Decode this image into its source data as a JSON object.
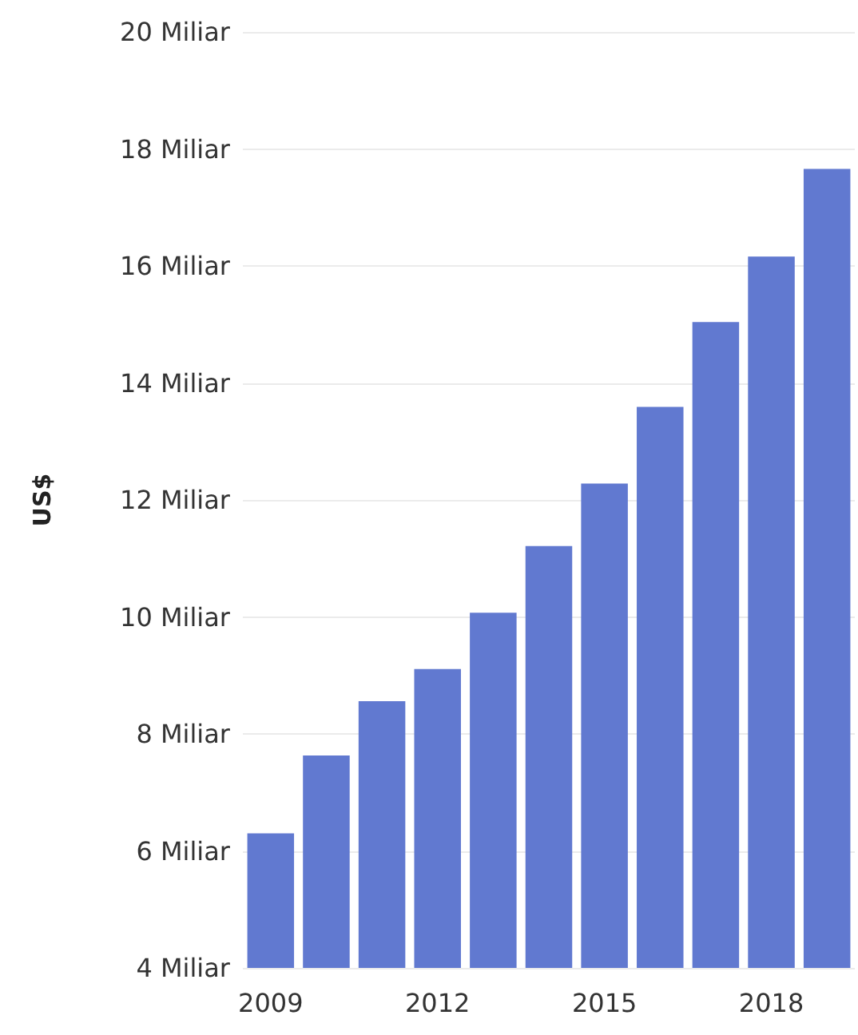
{
  "chart_data": {
    "type": "bar",
    "ylabel": "US$",
    "categories": [
      "2009",
      null,
      null,
      "2012",
      null,
      null,
      "2015",
      null,
      null,
      "2018",
      null
    ],
    "values": [
      6.3,
      7.63,
      8.56,
      9.11,
      10.07,
      11.21,
      12.28,
      13.59,
      15.04,
      16.16,
      17.66
    ],
    "color": "#6179d0",
    "ylim": [
      4,
      20
    ],
    "yticks": [
      {
        "value": 4,
        "label": "4 Miliar"
      },
      {
        "value": 6,
        "label": "6 Miliar"
      },
      {
        "value": 8,
        "label": "8 Miliar"
      },
      {
        "value": 10,
        "label": "10 Miliar"
      },
      {
        "value": 12,
        "label": "12 Miliar"
      },
      {
        "value": 14,
        "label": "14 Miliar"
      },
      {
        "value": 16,
        "label": "16 Miliar"
      },
      {
        "value": 18,
        "label": "18 Miliar"
      },
      {
        "value": 20,
        "label": "20 Miliar"
      }
    ],
    "grid": "y"
  }
}
